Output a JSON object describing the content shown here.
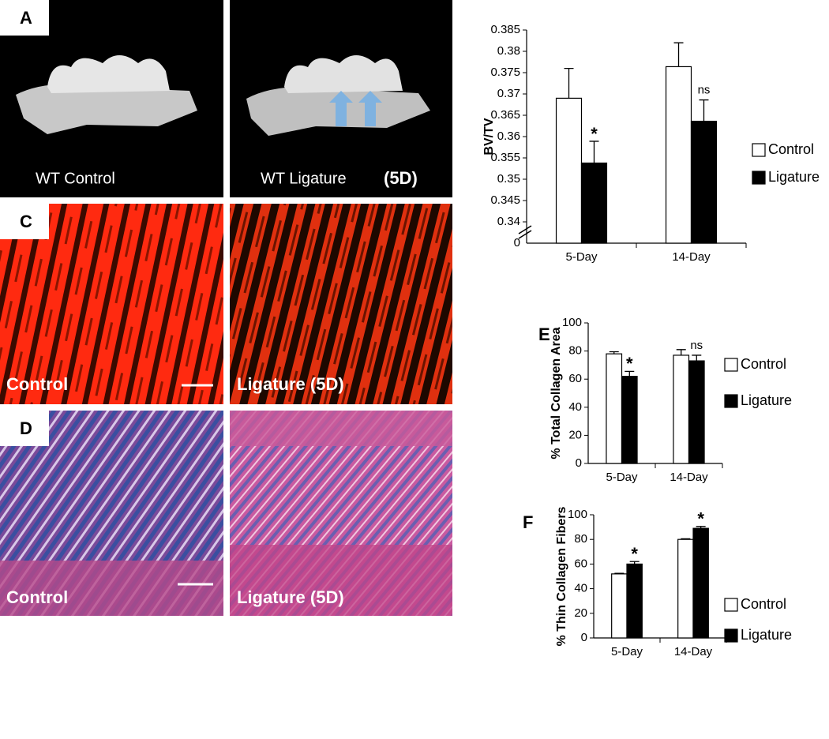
{
  "panels": {
    "A": {
      "label": "A",
      "left_caption": "WT Control",
      "right_caption": "WT Ligature",
      "right_suffix": "(5D)"
    },
    "C": {
      "label": "C",
      "left_caption": "Control",
      "right_caption": "Ligature (5D)"
    },
    "D": {
      "label": "D",
      "left_caption": "Control",
      "right_caption": "Ligature (5D)"
    }
  },
  "chart_data": [
    {
      "type": "bar",
      "y_label": "BV/TV",
      "categories": [
        "5-Day",
        "14-Day"
      ],
      "series": [
        {
          "name": "Control",
          "color": "#ffffff",
          "values": [
            0.369,
            0.3764
          ],
          "errors": [
            0.007,
            0.0056
          ],
          "annotations": [
            null,
            null
          ]
        },
        {
          "name": "Ligature",
          "color": "#000000",
          "values": [
            0.3538,
            0.3636
          ],
          "errors": [
            0.0051,
            0.005
          ],
          "annotations": [
            "*",
            "ns"
          ]
        }
      ],
      "ylim": [
        0.335,
        0.385
      ],
      "yticks": [
        0.34,
        0.345,
        0.35,
        0.355,
        0.36,
        0.365,
        0.37,
        0.375,
        0.38,
        0.385
      ],
      "ybreak_tick": 0,
      "grid": false,
      "legend": "right"
    },
    {
      "type": "bar",
      "panel_label": "E",
      "y_label": "% Total Collagen Area",
      "categories": [
        "5-Day",
        "14-Day"
      ],
      "series": [
        {
          "name": "Control",
          "color": "#ffffff",
          "values": [
            78,
            77
          ],
          "errors": [
            1.5,
            4
          ],
          "annotations": [
            null,
            null
          ]
        },
        {
          "name": "Ligature",
          "color": "#000000",
          "values": [
            62,
            73
          ],
          "errors": [
            3.5,
            4
          ],
          "annotations": [
            "*",
            "ns"
          ]
        }
      ],
      "ylim": [
        0,
        100
      ],
      "yticks": [
        0,
        20,
        40,
        60,
        80,
        100
      ],
      "grid": false,
      "legend": "right"
    },
    {
      "type": "bar",
      "panel_label": "F",
      "y_label": "% Thin Collagen Fibers",
      "categories": [
        "5-Day",
        "14-Day"
      ],
      "series": [
        {
          "name": "Control",
          "color": "#ffffff",
          "values": [
            52,
            80
          ],
          "errors": [
            0.5,
            0.5
          ],
          "annotations": [
            null,
            null
          ]
        },
        {
          "name": "Ligature",
          "color": "#000000",
          "values": [
            60,
            89
          ],
          "errors": [
            2,
            1.5
          ],
          "annotations": [
            "*",
            "*"
          ]
        }
      ],
      "ylim": [
        0,
        100
      ],
      "yticks": [
        0,
        20,
        40,
        60,
        80,
        100
      ],
      "grid": false,
      "legend": "right"
    }
  ]
}
